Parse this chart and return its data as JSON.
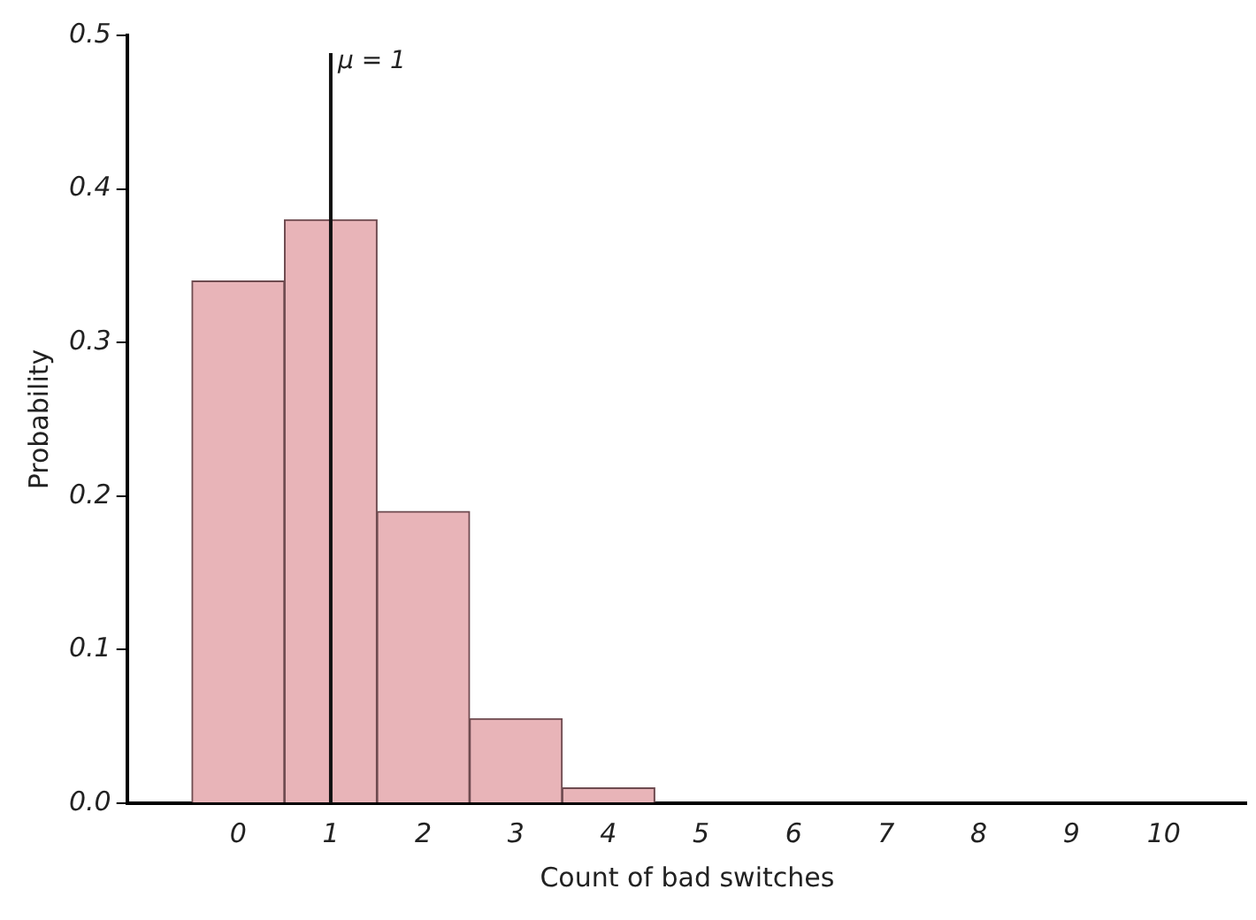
{
  "chart_data": {
    "type": "histogram",
    "xlabel": "Count of bad switches",
    "ylabel": "Probability",
    "bins": [
      -0.5,
      0.5,
      1.5,
      2.5,
      3.5,
      4.5,
      5.5,
      6.5,
      7.5,
      8.5,
      9.5,
      10.5
    ],
    "values": [
      0.34,
      0.38,
      0.19,
      0.055,
      0.01,
      0,
      0,
      0,
      0,
      0,
      0
    ],
    "color": "#e8b4b8",
    "xlim": [
      -1.2,
      10.9
    ],
    "xticks": [
      0,
      1,
      2,
      3,
      4,
      5,
      6,
      7,
      8,
      9,
      10
    ],
    "ylim": [
      0,
      0.5
    ],
    "yticks": [
      {
        "value": 0,
        "label": "0.0"
      },
      {
        "value": 0.1,
        "label": "0.1"
      },
      {
        "value": 0.2,
        "label": "0.2"
      },
      {
        "value": 0.3,
        "label": "0.3"
      },
      {
        "value": 0.4,
        "label": "0.4"
      },
      {
        "value": 0.5,
        "label": "0.5"
      }
    ],
    "ref_lines": [
      {
        "axis": "x",
        "value": 1,
        "label": "μ = 1"
      }
    ],
    "grid": false,
    "legend": false
  }
}
